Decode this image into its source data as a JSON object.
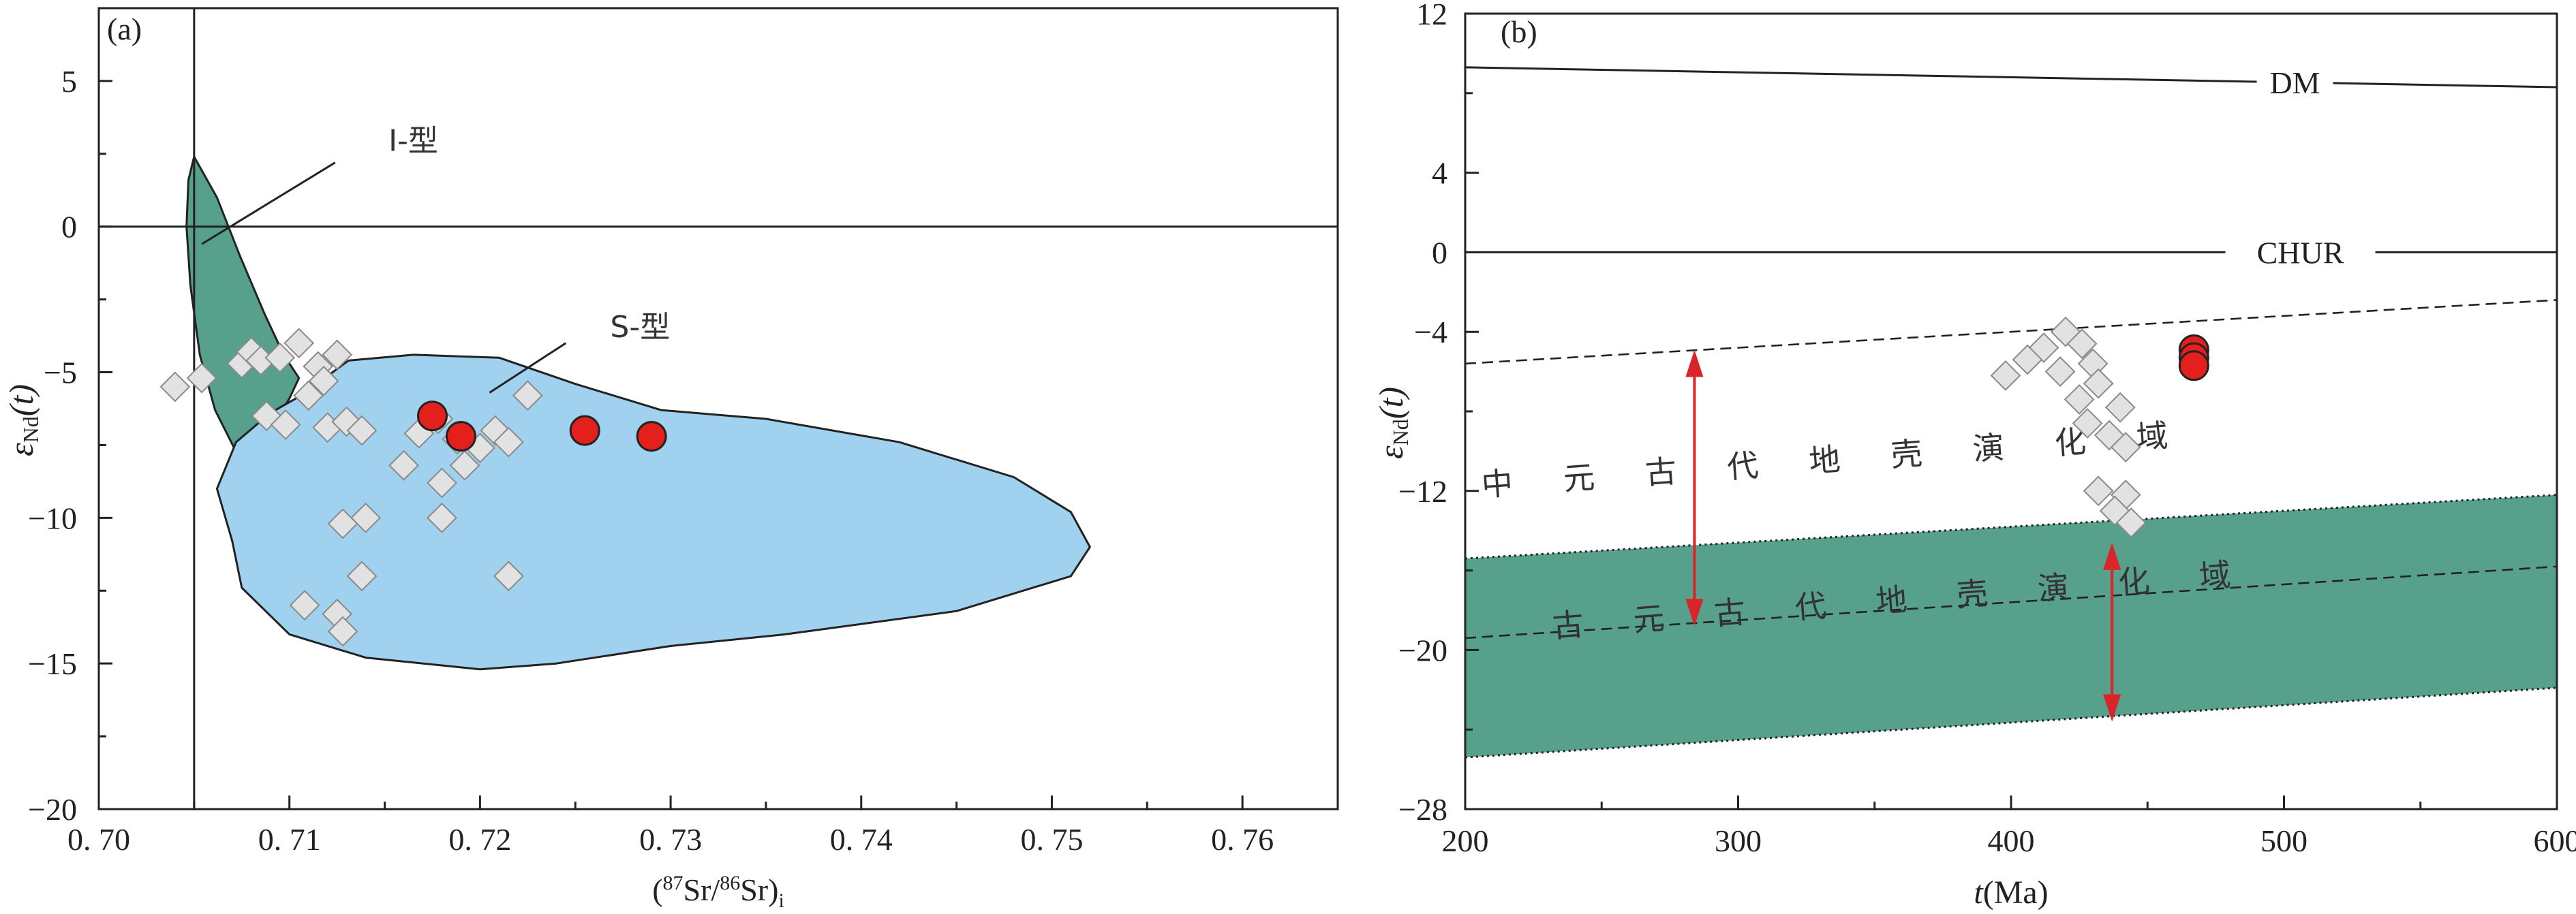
{
  "chart_data": [
    {
      "type": "scatter",
      "panel_label": "(a)",
      "xlabel": {
        "open": "(",
        "sup1": "87",
        "mid": "Sr/",
        "sup2": "86",
        "close": "Sr)",
        "sub": "i"
      },
      "ylabel": {
        "main": "ε",
        "sub": "Nd",
        "suffix": "(t)"
      },
      "xlim": [
        0.7,
        0.765
      ],
      "ylim": [
        -20,
        7.5
      ],
      "xticks": [
        0.7,
        0.71,
        0.72,
        0.73,
        0.74,
        0.75,
        0.76
      ],
      "xtick_labels": [
        "0. 70",
        "0. 71",
        "0. 72",
        "0. 73",
        "0. 74",
        "0. 75",
        "0. 76"
      ],
      "yticks": [
        5,
        0,
        -5,
        -10,
        -15,
        -20
      ],
      "ytick_labels": [
        "5",
        "0",
        "−5",
        "−10",
        "−15",
        "−20"
      ],
      "reference_lines": {
        "x": 0.705,
        "y": 0
      },
      "fields": [
        {
          "label": "I-型",
          "color": "#56a08c",
          "polygon": [
            [
              0.705,
              2.4
            ],
            [
              0.7062,
              1.0
            ],
            [
              0.7074,
              -1.0
            ],
            [
              0.7087,
              -3.0
            ],
            [
              0.7097,
              -4.4
            ],
            [
              0.7105,
              -5.2
            ],
            [
              0.71,
              -5.9
            ],
            [
              0.7092,
              -6.8
            ],
            [
              0.7088,
              -7.6
            ],
            [
              0.708,
              -8.2
            ],
            [
              0.7071,
              -7.6
            ],
            [
              0.7061,
              -6.3
            ],
            [
              0.7053,
              -4.4
            ],
            [
              0.7048,
              -2.0
            ],
            [
              0.7046,
              0.0
            ],
            [
              0.7047,
              1.6
            ]
          ],
          "leader": [
            [
              0.7054,
              -0.6
            ],
            [
              0.7124,
              2.2
            ]
          ],
          "label_at": [
            0.7165,
            2.6
          ]
        },
        {
          "label": "S-型",
          "color": "#a0d1ee",
          "polygon": [
            [
              0.7106,
              -5.8
            ],
            [
              0.7131,
              -4.6
            ],
            [
              0.7165,
              -4.4
            ],
            [
              0.721,
              -4.5
            ],
            [
              0.725,
              -5.4
            ],
            [
              0.7295,
              -6.3
            ],
            [
              0.735,
              -6.6
            ],
            [
              0.742,
              -7.4
            ],
            [
              0.748,
              -8.6
            ],
            [
              0.751,
              -9.8
            ],
            [
              0.752,
              -11.0
            ],
            [
              0.751,
              -12.0
            ],
            [
              0.745,
              -13.2
            ],
            [
              0.736,
              -14.0
            ],
            [
              0.73,
              -14.4
            ],
            [
              0.724,
              -15.0
            ],
            [
              0.72,
              -15.2
            ],
            [
              0.714,
              -14.8
            ],
            [
              0.71,
              -14.0
            ],
            [
              0.7075,
              -12.4
            ],
            [
              0.707,
              -10.8
            ],
            [
              0.7062,
              -9.0
            ],
            [
              0.7072,
              -7.4
            ],
            [
              0.709,
              -6.4
            ]
          ],
          "leader": [
            [
              0.7205,
              -5.7
            ],
            [
              0.7245,
              -4.0
            ]
          ],
          "label_at": [
            0.7284,
            -3.8
          ]
        }
      ],
      "series": [
        {
          "name": "",
          "marker": "diamond",
          "color": "#e2e2e2",
          "points": [
            [
              0.704,
              -5.5
            ],
            [
              0.7054,
              -5.2
            ],
            [
              0.7075,
              -4.7
            ],
            [
              0.708,
              -4.3
            ],
            [
              0.7085,
              -4.6
            ],
            [
              0.7095,
              -4.5
            ],
            [
              0.7105,
              -4.0
            ],
            [
              0.7115,
              -4.8
            ],
            [
              0.7125,
              -4.4
            ],
            [
              0.711,
              -5.8
            ],
            [
              0.7118,
              -5.3
            ],
            [
              0.7088,
              -6.5
            ],
            [
              0.7098,
              -6.8
            ],
            [
              0.712,
              -6.9
            ],
            [
              0.713,
              -6.7
            ],
            [
              0.7138,
              -7.0
            ],
            [
              0.716,
              -8.2
            ],
            [
              0.7168,
              -7.1
            ],
            [
              0.7178,
              -6.6
            ],
            [
              0.7188,
              -7.3
            ],
            [
              0.7192,
              -8.2
            ],
            [
              0.72,
              -7.6
            ],
            [
              0.7208,
              -7.0
            ],
            [
              0.7215,
              -7.4
            ],
            [
              0.7225,
              -5.8
            ],
            [
              0.718,
              -8.8
            ],
            [
              0.718,
              -10.0
            ],
            [
              0.714,
              -10.0
            ],
            [
              0.7128,
              -10.2
            ],
            [
              0.7138,
              -12.0
            ],
            [
              0.7215,
              -12.0
            ],
            [
              0.7108,
              -13.0
            ],
            [
              0.7125,
              -13.3
            ],
            [
              0.7128,
              -13.9
            ]
          ]
        },
        {
          "name": "",
          "marker": "circle",
          "color": "#e3201b",
          "points": [
            [
              0.7175,
              -6.5
            ],
            [
              0.719,
              -7.2
            ],
            [
              0.7255,
              -7.0
            ],
            [
              0.729,
              -7.2
            ]
          ]
        }
      ]
    },
    {
      "type": "line",
      "panel_label": "(b)",
      "xlabel": {
        "italic": "t",
        "rest": "(Ma)"
      },
      "ylabel": {
        "main": "ε",
        "sub": "Nd",
        "suffix": "(t)"
      },
      "xlim": [
        200,
        600
      ],
      "ylim": [
        -28,
        12
      ],
      "xticks": [
        200,
        300,
        400,
        500,
        600
      ],
      "xtick_labels": [
        "200",
        "300",
        "400",
        "500",
        "600"
      ],
      "yticks": [
        12,
        4,
        0,
        -4,
        -12,
        -20,
        -28
      ],
      "ytick_labels": [
        "12",
        "4",
        "0",
        "−4",
        "−12",
        "−20",
        "−28"
      ],
      "lines": [
        {
          "label": "DM",
          "style": "solid",
          "points": [
            [
              200,
              9.3
            ],
            [
              600,
              8.3
            ]
          ]
        },
        {
          "label": "CHUR",
          "style": "solid",
          "points": [
            [
              200,
              0
            ],
            [
              600,
              0
            ]
          ]
        },
        {
          "label": "",
          "style": "dashed",
          "points": [
            [
              200,
              -5.6
            ],
            [
              600,
              -2.4
            ]
          ]
        },
        {
          "label": "",
          "style": "dashed",
          "points": [
            [
              200,
              -19.4
            ],
            [
              600,
              -15.8
            ]
          ]
        },
        {
          "label": "",
          "style": "dotted",
          "points": [
            [
              200,
              -15.4
            ],
            [
              600,
              -12.2
            ]
          ]
        },
        {
          "label": "",
          "style": "dotted",
          "points": [
            [
              200,
              -25.4
            ],
            [
              600,
              -21.9
            ]
          ]
        }
      ],
      "band": {
        "color": "#56a08c",
        "upper": [
          [
            200,
            -15.4
          ],
          [
            600,
            -12.2
          ]
        ],
        "lower": [
          [
            200,
            -25.4
          ],
          [
            600,
            -21.9
          ]
        ]
      },
      "field_labels": [
        {
          "text": [
            "中",
            "元",
            "古",
            "代",
            "地",
            "壳",
            "演",
            "化",
            "域"
          ],
          "from": [
            212,
            -12.2
          ],
          "to": [
            452,
            -9.8
          ]
        },
        {
          "text": [
            "古",
            "元",
            "古",
            "代",
            "地",
            "壳",
            "演",
            "化",
            "域"
          ],
          "from": [
            238,
            -19.3
          ],
          "to": [
            475,
            -16.8
          ]
        }
      ],
      "arrows": [
        {
          "x": 284,
          "from": -4.9,
          "to": -18.8,
          "color": "#d9252a"
        },
        {
          "x": 437,
          "from": -14.6,
          "to": -23.6,
          "color": "#d9252a"
        }
      ],
      "series": [
        {
          "name": "",
          "marker": "diamond",
          "color": "#e2e2e2",
          "points": [
            [
              420,
              -4.0
            ],
            [
              412,
              -4.8
            ],
            [
              426,
              -4.6
            ],
            [
              406,
              -5.4
            ],
            [
              430,
              -5.6
            ],
            [
              398,
              -6.2
            ],
            [
              418,
              -6.0
            ],
            [
              432,
              -6.6
            ],
            [
              425,
              -7.4
            ],
            [
              440,
              -7.8
            ],
            [
              428,
              -8.6
            ],
            [
              436,
              -9.2
            ],
            [
              442,
              -9.8
            ],
            [
              432,
              -12.0
            ],
            [
              442,
              -12.2
            ],
            [
              438,
              -13.0
            ],
            [
              444,
              -13.6
            ]
          ]
        },
        {
          "name": "",
          "marker": "circle",
          "color": "#e3201b",
          "points": [
            [
              467,
              -4.9
            ],
            [
              467,
              -5.3
            ],
            [
              467,
              -5.7
            ]
          ]
        }
      ]
    }
  ]
}
